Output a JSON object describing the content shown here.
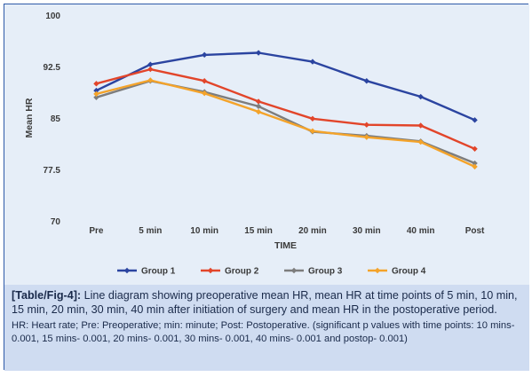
{
  "chart_data": {
    "type": "line",
    "categories": [
      "Pre",
      "5 min",
      "10 min",
      "15 min",
      "20 min",
      "30 min",
      "40 min",
      "Post"
    ],
    "series": [
      {
        "name": "Group 1",
        "color": "#2b44a0",
        "values": [
          89,
          92.8,
          94.2,
          94.5,
          93.2,
          90.4,
          88.1,
          84.7
        ]
      },
      {
        "name": "Group 2",
        "color": "#e2452a",
        "values": [
          90,
          92.1,
          90.4,
          87.4,
          84.9,
          84.0,
          83.9,
          80.5
        ]
      },
      {
        "name": "Group 3",
        "color": "#7d7d7d",
        "values": [
          88.0,
          90.4,
          88.8,
          86.7,
          83.0,
          82.4,
          81.6,
          78.4
        ]
      },
      {
        "name": "Group 4",
        "color": "#f4a32a",
        "values": [
          88.5,
          90.5,
          88.6,
          85.9,
          83.1,
          82.2,
          81.5,
          77.9
        ]
      }
    ],
    "ylim": [
      70,
      100
    ],
    "yticks": [
      "100",
      "92.5",
      "85",
      "77.5",
      "70"
    ],
    "xlabel": "TIME",
    "ylabel": "Mean HR",
    "grid": false,
    "legend_position": "bottom"
  },
  "caption": {
    "label": "[Table/Fig-4]:",
    "title": "Line diagram showing preoperative mean HR, mean HR at time points of 5 min, 10 min, 15 min, 20 min, 30 min, 40 min after initiation of surgery and mean HR in the postoperative period.",
    "note": "HR: Heart rate; Pre: Preoperative; min: minute; Post: Postoperative. (significant p values with time points: 10 mins- 0.001, 15 mins- 0.001, 20 mins- 0.001, 30 mins- 0.001, 40 mins- 0.001 and postop- 0.001)"
  }
}
